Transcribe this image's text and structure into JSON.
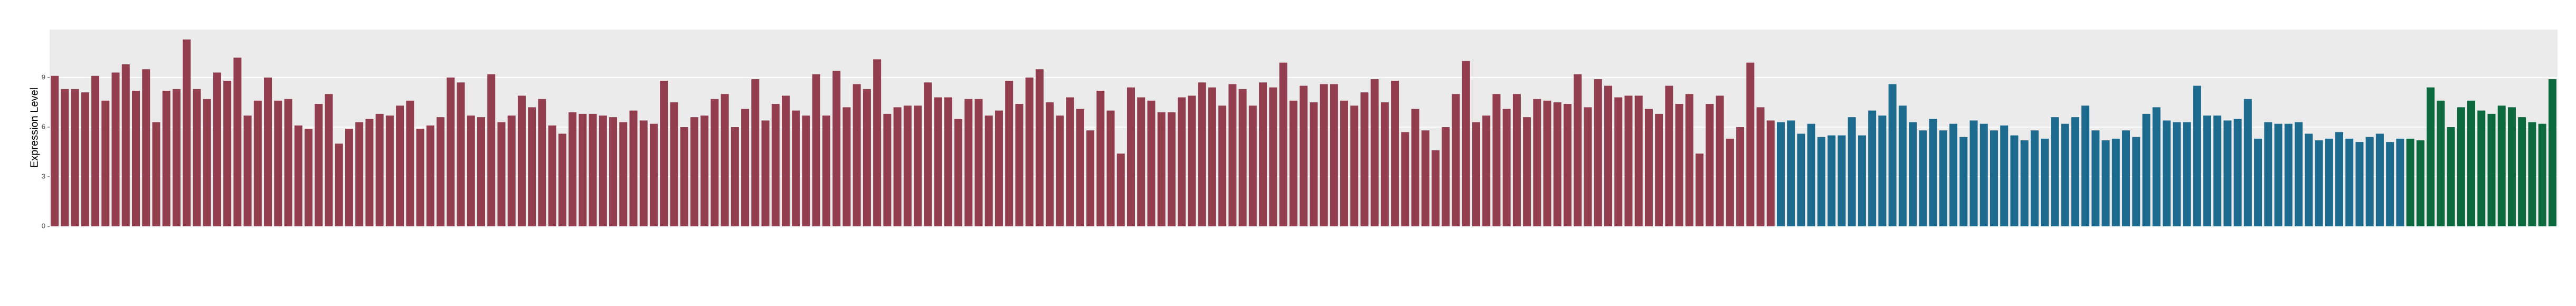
{
  "chart_data": {
    "type": "bar",
    "y_label": "Expression Level",
    "ylim": [
      0,
      11.9
    ],
    "yticks": [
      0,
      3,
      6,
      9
    ],
    "grid": true,
    "series": [
      {
        "color": "#923e4f",
        "values": [
          9.1,
          8.3,
          8.3,
          8.1,
          9.1,
          7.6,
          9.3,
          9.8,
          8.2,
          9.5,
          6.3,
          8.2,
          8.3,
          11.3,
          8.3,
          7.7,
          9.3,
          8.8,
          10.2,
          6.7,
          7.6,
          9.0,
          7.6,
          7.7,
          6.1,
          5.9,
          7.4,
          8.0,
          5.0,
          5.9,
          6.3,
          6.5,
          6.8,
          6.7,
          7.3,
          7.6,
          5.9,
          6.1,
          6.6,
          9.0,
          8.7,
          6.7,
          6.6,
          9.2,
          6.3,
          6.7,
          7.9,
          7.2,
          7.7,
          6.1,
          5.6,
          6.9,
          6.8,
          6.8,
          6.7,
          6.6,
          6.3,
          7.0,
          6.4,
          6.2,
          8.8,
          7.5,
          6.0,
          6.6,
          6.7,
          7.7,
          8.0,
          6.0,
          7.1,
          8.9,
          6.4,
          7.4,
          7.9,
          7.0,
          6.7,
          9.2,
          6.7,
          9.4,
          7.2,
          8.6,
          8.3,
          10.1,
          6.8,
          7.2,
          7.3,
          7.3,
          8.7,
          7.8,
          7.8,
          6.5,
          7.7,
          7.7,
          6.7,
          7.0,
          8.8,
          7.4,
          9.0,
          9.5,
          7.5,
          6.7,
          7.8,
          7.1,
          5.8,
          8.2,
          7.0,
          4.4,
          8.4,
          7.8,
          7.6,
          6.9,
          6.9,
          7.8,
          7.9,
          8.7,
          8.4,
          7.3,
          8.6,
          8.3,
          7.3,
          8.7,
          8.4,
          9.9,
          7.6,
          8.5,
          7.5,
          8.6,
          8.6,
          7.6,
          7.3,
          8.1,
          8.9,
          7.5,
          8.8,
          5.7,
          7.1,
          5.8,
          4.6,
          6.0,
          8.0,
          10.0,
          6.3,
          6.7,
          8.0,
          7.1,
          8.0,
          6.6,
          7.7,
          7.6,
          7.5,
          7.4,
          9.2,
          7.2,
          8.9,
          8.5,
          7.8,
          7.9,
          7.9,
          7.1,
          6.8,
          8.5,
          7.4,
          8.0,
          4.4,
          7.4,
          7.9,
          5.3,
          6.0,
          9.9,
          7.2,
          6.4,
          null,
          null,
          null,
          null,
          null,
          null,
          null,
          null,
          null,
          null,
          null,
          null,
          null,
          null,
          null,
          null,
          null,
          null,
          null,
          null,
          null,
          null,
          null,
          null,
          null,
          null,
          null,
          null,
          null,
          null,
          null,
          null,
          null,
          null,
          null,
          null,
          null,
          null,
          null,
          null,
          null,
          null,
          null,
          null,
          null,
          null,
          null,
          null,
          null,
          null,
          null,
          null,
          null,
          null,
          null,
          null,
          null,
          null,
          null,
          null,
          null,
          null,
          null,
          null,
          null,
          null,
          null,
          null,
          null,
          null,
          null,
          null,
          null,
          null,
          null,
          null,
          null
        ]
      },
      {
        "color": "#1c6a8e",
        "values": [
          null,
          null,
          null,
          null,
          null,
          null,
          null,
          null,
          null,
          null,
          null,
          null,
          null,
          null,
          null,
          null,
          null,
          null,
          null,
          null,
          null,
          null,
          null,
          null,
          null,
          null,
          null,
          null,
          null,
          null,
          null,
          null,
          null,
          null,
          null,
          null,
          null,
          null,
          null,
          null,
          null,
          null,
          null,
          null,
          null,
          null,
          null,
          null,
          null,
          null,
          null,
          null,
          null,
          null,
          null,
          null,
          null,
          null,
          null,
          null,
          null,
          null,
          null,
          null,
          null,
          null,
          null,
          null,
          null,
          null,
          null,
          null,
          null,
          null,
          null,
          null,
          null,
          null,
          null,
          null,
          null,
          null,
          null,
          null,
          null,
          null,
          null,
          null,
          null,
          null,
          null,
          null,
          null,
          null,
          null,
          null,
          null,
          null,
          null,
          null,
          null,
          null,
          null,
          null,
          null,
          null,
          null,
          null,
          null,
          null,
          null,
          null,
          null,
          null,
          null,
          null,
          null,
          null,
          null,
          null,
          null,
          null,
          null,
          null,
          null,
          null,
          null,
          null,
          null,
          null,
          null,
          null,
          null,
          null,
          null,
          null,
          null,
          null,
          null,
          null,
          null,
          null,
          null,
          null,
          null,
          null,
          null,
          null,
          null,
          null,
          null,
          null,
          null,
          null,
          null,
          null,
          null,
          null,
          null,
          null,
          null,
          null,
          null,
          null,
          null,
          null,
          null,
          null,
          null,
          null,
          6.3,
          6.4,
          5.6,
          6.2,
          5.4,
          5.5,
          5.5,
          6.6,
          5.5,
          7.0,
          6.7,
          8.6,
          7.3,
          6.3,
          5.8,
          6.5,
          5.8,
          6.2,
          5.4,
          6.4,
          6.2,
          5.8,
          6.1,
          5.5,
          5.2,
          5.8,
          5.3,
          6.6,
          6.2,
          6.6,
          7.3,
          5.8,
          5.2,
          5.3,
          5.8,
          5.4,
          6.8,
          7.2,
          6.4,
          6.3,
          6.3,
          8.5,
          6.7,
          6.7,
          6.4,
          6.5,
          7.7,
          5.3,
          6.3,
          6.2,
          6.2,
          6.3,
          5.6,
          5.2,
          5.3,
          5.7,
          5.3,
          5.1,
          5.4,
          5.6,
          5.1,
          5.3,
          null,
          null,
          null,
          null,
          null,
          null,
          null,
          null,
          null,
          null,
          null,
          null,
          null,
          null,
          null
        ]
      },
      {
        "color": "#0d6a3f",
        "values": [
          null,
          null,
          null,
          null,
          null,
          null,
          null,
          null,
          null,
          null,
          null,
          null,
          null,
          null,
          null,
          null,
          null,
          null,
          null,
          null,
          null,
          null,
          null,
          null,
          null,
          null,
          null,
          null,
          null,
          null,
          null,
          null,
          null,
          null,
          null,
          null,
          null,
          null,
          null,
          null,
          null,
          null,
          null,
          null,
          null,
          null,
          null,
          null,
          null,
          null,
          null,
          null,
          null,
          null,
          null,
          null,
          null,
          null,
          null,
          null,
          null,
          null,
          null,
          null,
          null,
          null,
          null,
          null,
          null,
          null,
          null,
          null,
          null,
          null,
          null,
          null,
          null,
          null,
          null,
          null,
          null,
          null,
          null,
          null,
          null,
          null,
          null,
          null,
          null,
          null,
          null,
          null,
          null,
          null,
          null,
          null,
          null,
          null,
          null,
          null,
          null,
          null,
          null,
          null,
          null,
          null,
          null,
          null,
          null,
          null,
          null,
          null,
          null,
          null,
          null,
          null,
          null,
          null,
          null,
          null,
          null,
          null,
          null,
          null,
          null,
          null,
          null,
          null,
          null,
          null,
          null,
          null,
          null,
          null,
          null,
          null,
          null,
          null,
          null,
          null,
          null,
          null,
          null,
          null,
          null,
          null,
          null,
          null,
          null,
          null,
          null,
          null,
          null,
          null,
          null,
          null,
          null,
          null,
          null,
          null,
          null,
          null,
          null,
          null,
          null,
          null,
          null,
          null,
          null,
          null,
          null,
          null,
          null,
          null,
          null,
          null,
          null,
          null,
          null,
          null,
          null,
          null,
          null,
          null,
          null,
          null,
          null,
          null,
          null,
          null,
          null,
          null,
          null,
          null,
          null,
          null,
          null,
          null,
          null,
          null,
          null,
          null,
          null,
          null,
          null,
          null,
          null,
          null,
          null,
          null,
          null,
          null,
          null,
          null,
          null,
          null,
          null,
          null,
          null,
          null,
          null,
          null,
          null,
          null,
          null,
          null,
          null,
          null,
          null,
          null,
          null,
          null,
          5.3,
          5.2,
          8.4,
          7.6,
          6.0,
          7.2,
          7.6,
          7.0,
          6.8,
          7.3,
          7.2,
          6.6,
          6.3,
          6.2,
          8.9
        ]
      }
    ]
  }
}
